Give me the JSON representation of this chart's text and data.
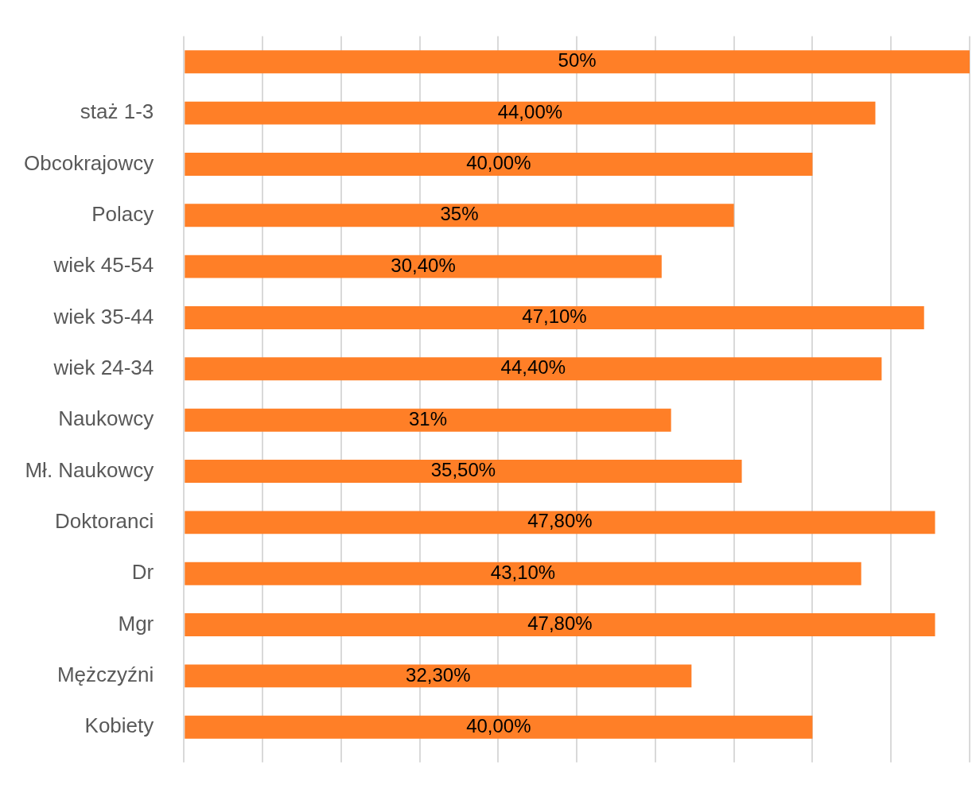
{
  "chart_data": {
    "type": "bar",
    "orientation": "horizontal",
    "categories": [
      null,
      "staż 1-3",
      "Obcokrajowcy",
      "Polacy",
      "wiek 45-54",
      "wiek 35-44",
      "wiek 24-34",
      "Naukowcy",
      "Mł. Naukowcy",
      "Doktoranci",
      "Dr",
      "Mgr",
      "Mężczyźni",
      "Kobiety"
    ],
    "values": [
      50,
      44,
      40,
      35,
      30.4,
      47.1,
      44.4,
      31,
      35.5,
      47.8,
      43.1,
      47.8,
      32.3,
      40
    ],
    "value_labels": [
      "50%",
      "44,00%",
      "40,00%",
      "35%",
      "30,40%",
      "47,10%",
      "44,40%",
      "31%",
      "35,50%",
      "47,80%",
      "43,10%",
      "47,80%",
      "32,30%",
      "40,00%"
    ],
    "color": "#ff7f27",
    "xlim": [
      0,
      50
    ],
    "xticks": [
      {
        "value": 0,
        "label": null
      },
      {
        "value": 5,
        "label": null
      },
      {
        "value": 10,
        "label": null
      },
      {
        "value": 15,
        "label": null
      },
      {
        "value": 20,
        "label": null
      },
      {
        "value": 25,
        "label": null
      },
      {
        "value": 30,
        "label": null
      },
      {
        "value": 35,
        "label": null
      },
      {
        "value": 40,
        "label": null
      },
      {
        "value": 45,
        "label": null
      },
      {
        "value": 50,
        "label": null
      }
    ],
    "tick_labels": "y",
    "grid": "x"
  }
}
